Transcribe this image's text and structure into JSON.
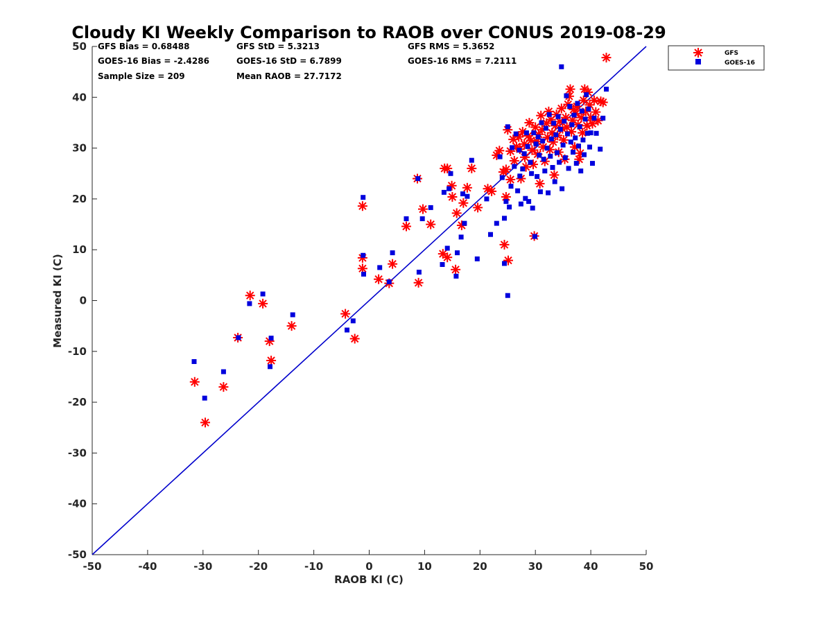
{
  "chart_data": {
    "type": "scatter",
    "title": "Cloudy KI Weekly Comparison to RAOB over CONUS 2019-08-29",
    "xlabel": "RAOB KI (C)",
    "ylabel": "Measured KI (C)",
    "xlim": [
      -50,
      50
    ],
    "ylim": [
      -50,
      50
    ],
    "xticks": [
      -50,
      -40,
      -30,
      -20,
      -10,
      0,
      10,
      20,
      30,
      40,
      50
    ],
    "yticks": [
      -50,
      -40,
      -30,
      -20,
      -10,
      0,
      10,
      20,
      30,
      40,
      50
    ],
    "grid": false,
    "legend_position": "outside-top-right",
    "reference_line": {
      "from": [
        -50,
        -50
      ],
      "to": [
        50,
        50
      ],
      "color": "#0000cc"
    },
    "stats": [
      [
        "GFS Bias = 0.68488",
        "GFS StD = 5.3213",
        "GFS RMS = 5.3652"
      ],
      [
        "GOES-16 Bias = -2.4286",
        "GOES-16 StD = 6.7899",
        "GOES-16 RMS = 7.2111"
      ],
      [
        "Sample Size = 209",
        "Mean RAOB = 27.7172"
      ]
    ],
    "series": [
      {
        "name": "GFS",
        "marker": "asterisk",
        "color": "#ff0000",
        "points": [
          [
            -31.5,
            -16
          ],
          [
            -29.6,
            -24
          ],
          [
            -26.3,
            -17
          ],
          [
            -23.7,
            -7.3
          ],
          [
            -21.5,
            1
          ],
          [
            -19.2,
            -0.6
          ],
          [
            -18,
            -8
          ],
          [
            -17.7,
            -11.8
          ],
          [
            -14,
            -5
          ],
          [
            -4.3,
            -2.6
          ],
          [
            -2.6,
            -7.5
          ],
          [
            -1.2,
            18.6
          ],
          [
            -1.2,
            8.4
          ],
          [
            -1.2,
            6.3
          ],
          [
            1.7,
            4.2
          ],
          [
            3.6,
            3.4
          ],
          [
            4.2,
            7.2
          ],
          [
            6.7,
            14.6
          ],
          [
            8.7,
            24
          ],
          [
            8.9,
            3.5
          ],
          [
            9.7,
            18
          ],
          [
            11.1,
            15
          ],
          [
            13.3,
            9.2
          ],
          [
            13.6,
            26
          ],
          [
            14.1,
            26
          ],
          [
            14.1,
            8.5
          ],
          [
            14.9,
            22.6
          ],
          [
            15,
            20.4
          ],
          [
            15.6,
            6.1
          ],
          [
            15.8,
            17.2
          ],
          [
            16.7,
            14.8
          ],
          [
            17,
            19.2
          ],
          [
            17.7,
            22.2
          ],
          [
            18.5,
            26
          ],
          [
            19.6,
            18.3
          ],
          [
            21.4,
            22
          ],
          [
            22.1,
            21.5
          ],
          [
            23,
            28.6
          ],
          [
            23.5,
            29.5
          ],
          [
            24.2,
            25.3
          ],
          [
            24.4,
            11
          ],
          [
            24.7,
            25.8
          ],
          [
            24.7,
            20.4
          ],
          [
            25.1,
            7.9
          ],
          [
            25.5,
            23.8
          ],
          [
            25,
            33.6
          ],
          [
            25.5,
            29.4
          ],
          [
            26,
            31.7
          ],
          [
            26.2,
            27.5
          ],
          [
            26.6,
            30.3
          ],
          [
            27,
            32.2
          ],
          [
            27.2,
            29.8
          ],
          [
            27.4,
            24
          ],
          [
            27.7,
            33.2
          ],
          [
            28,
            30.8
          ],
          [
            28.1,
            28.2
          ],
          [
            28.3,
            26.3
          ],
          [
            28.7,
            32.4
          ],
          [
            28.9,
            35
          ],
          [
            29.2,
            31.5
          ],
          [
            29.4,
            29.6
          ],
          [
            29.6,
            26.8
          ],
          [
            29.8,
            12.7
          ],
          [
            30,
            34.1
          ],
          [
            30.3,
            31.3
          ],
          [
            30.4,
            28.8
          ],
          [
            30.6,
            32.7
          ],
          [
            30.8,
            23
          ],
          [
            31,
            36.4
          ],
          [
            31.2,
            33.6
          ],
          [
            31.4,
            30.2
          ],
          [
            31.7,
            27.4
          ],
          [
            32,
            34.9
          ],
          [
            32.2,
            32.1
          ],
          [
            32.4,
            37.2
          ],
          [
            32.6,
            29.7
          ],
          [
            32.8,
            35.6
          ],
          [
            33,
            33
          ],
          [
            33.2,
            31.2
          ],
          [
            33.4,
            24.7
          ],
          [
            33.6,
            34.4
          ],
          [
            33.8,
            36.6
          ],
          [
            34,
            32.5
          ],
          [
            34.2,
            29.2
          ],
          [
            34.4,
            35.2
          ],
          [
            34.7,
            37.8
          ],
          [
            34.9,
            33.8
          ],
          [
            35.1,
            31.6
          ],
          [
            35.3,
            27.8
          ],
          [
            35.5,
            36
          ],
          [
            35.7,
            34.1
          ],
          [
            35.9,
            38.6
          ],
          [
            36.1,
            40.2
          ],
          [
            36.3,
            41.6
          ],
          [
            36.5,
            33.2
          ],
          [
            36.7,
            35.5
          ],
          [
            36.9,
            37.6
          ],
          [
            37.1,
            30.2
          ],
          [
            37.3,
            36.8
          ],
          [
            37.5,
            38.2
          ],
          [
            37.7,
            34.6
          ],
          [
            37.9,
            27.8
          ],
          [
            38.1,
            29
          ],
          [
            38.3,
            36
          ],
          [
            38.5,
            33
          ],
          [
            38.7,
            39.4
          ],
          [
            38.9,
            41.6
          ],
          [
            39.1,
            37.2
          ],
          [
            39.3,
            34.4
          ],
          [
            39.5,
            41
          ],
          [
            39.8,
            38.5
          ],
          [
            40,
            36
          ],
          [
            40.3,
            34.8
          ],
          [
            40.6,
            39.4
          ],
          [
            40.9,
            37.1
          ],
          [
            41.3,
            35.4
          ],
          [
            41.8,
            39.2
          ],
          [
            42.2,
            39
          ],
          [
            42.8,
            47.8
          ]
        ]
      },
      {
        "name": "GOES-16",
        "marker": "square",
        "color": "#0000dd",
        "points": [
          [
            -31.6,
            -12
          ],
          [
            -29.7,
            -19.2
          ],
          [
            -26.3,
            -14
          ],
          [
            -23.6,
            -7.3
          ],
          [
            -21.6,
            -0.6
          ],
          [
            -19.2,
            1.3
          ],
          [
            -17.9,
            -13
          ],
          [
            -17.7,
            -7.4
          ],
          [
            -13.8,
            -2.8
          ],
          [
            -4,
            -5.8
          ],
          [
            -2.9,
            -4
          ],
          [
            -1.1,
            20.3
          ],
          [
            -1.1,
            8.9
          ],
          [
            -1,
            5.2
          ],
          [
            1.9,
            6.5
          ],
          [
            3.6,
            3.7
          ],
          [
            4.2,
            9.4
          ],
          [
            6.7,
            16.1
          ],
          [
            8.8,
            24
          ],
          [
            9,
            5.6
          ],
          [
            9.6,
            16.1
          ],
          [
            11.1,
            18.3
          ],
          [
            13.2,
            7.1
          ],
          [
            13.5,
            21.3
          ],
          [
            14.1,
            10.3
          ],
          [
            14.4,
            22
          ],
          [
            14.7,
            25
          ],
          [
            15.7,
            4.8
          ],
          [
            15.9,
            9.4
          ],
          [
            16.6,
            12.5
          ],
          [
            16.9,
            21
          ],
          [
            17.2,
            15.2
          ],
          [
            17.7,
            20.5
          ],
          [
            18.5,
            27.6
          ],
          [
            19.5,
            8.2
          ],
          [
            21.2,
            20
          ],
          [
            21.9,
            13
          ],
          [
            23,
            15.2
          ],
          [
            23.6,
            28.3
          ],
          [
            24,
            24.2
          ],
          [
            24.4,
            16.2
          ],
          [
            24.4,
            7.3
          ],
          [
            24.7,
            19.5
          ],
          [
            25,
            1
          ],
          [
            25.3,
            18.4
          ],
          [
            25,
            34.2
          ],
          [
            25.6,
            22.5
          ],
          [
            25.8,
            30.1
          ],
          [
            26.2,
            26.4
          ],
          [
            26.5,
            32.8
          ],
          [
            26.8,
            21.6
          ],
          [
            27.1,
            29.6
          ],
          [
            27.2,
            24.5
          ],
          [
            27.4,
            19
          ],
          [
            27.7,
            25.9
          ],
          [
            28,
            28.9
          ],
          [
            28.2,
            20.1
          ],
          [
            28.4,
            33
          ],
          [
            28.6,
            30.3
          ],
          [
            28.8,
            19.5
          ],
          [
            29.1,
            27.2
          ],
          [
            29.3,
            25
          ],
          [
            29.5,
            18.2
          ],
          [
            29.7,
            33
          ],
          [
            29.9,
            12.6
          ],
          [
            30.1,
            30.8
          ],
          [
            30.3,
            24.4
          ],
          [
            30.5,
            32.2
          ],
          [
            30.7,
            28.6
          ],
          [
            30.9,
            21.4
          ],
          [
            31.1,
            35
          ],
          [
            31.3,
            31.4
          ],
          [
            31.5,
            27.8
          ],
          [
            31.7,
            25.5
          ],
          [
            31.9,
            33.9
          ],
          [
            32.1,
            30
          ],
          [
            32.3,
            21.2
          ],
          [
            32.5,
            36.6
          ],
          [
            32.7,
            28.4
          ],
          [
            32.9,
            31.8
          ],
          [
            33.1,
            26.2
          ],
          [
            33.3,
            34.9
          ],
          [
            33.5,
            23.4
          ],
          [
            33.7,
            32.6
          ],
          [
            33.9,
            29.1
          ],
          [
            34.1,
            36.2
          ],
          [
            34.3,
            27.2
          ],
          [
            34.5,
            33.7
          ],
          [
            34.7,
            46
          ],
          [
            34.8,
            22
          ],
          [
            35,
            30.6
          ],
          [
            35.2,
            35.3
          ],
          [
            35.4,
            28.1
          ],
          [
            35.6,
            40.3
          ],
          [
            35.8,
            32.8
          ],
          [
            36,
            26
          ],
          [
            36.2,
            38.2
          ],
          [
            36.4,
            31.2
          ],
          [
            36.6,
            34.6
          ],
          [
            36.8,
            29.2
          ],
          [
            37,
            36.5
          ],
          [
            37.2,
            32
          ],
          [
            37.4,
            27
          ],
          [
            37.6,
            38.8
          ],
          [
            37.8,
            30.4
          ],
          [
            38,
            34.2
          ],
          [
            38.2,
            25.5
          ],
          [
            38.4,
            37.3
          ],
          [
            38.6,
            31.6
          ],
          [
            38.8,
            28.7
          ],
          [
            39,
            35.7
          ],
          [
            39.2,
            40.5
          ],
          [
            39.4,
            32.9
          ],
          [
            39.6,
            37.7
          ],
          [
            39.8,
            30.2
          ],
          [
            40,
            33
          ],
          [
            40.3,
            27
          ],
          [
            40.6,
            35.9
          ],
          [
            41,
            32.9
          ],
          [
            41.7,
            29.8
          ],
          [
            42.2,
            35.9
          ],
          [
            42.8,
            41.6
          ]
        ]
      }
    ]
  }
}
